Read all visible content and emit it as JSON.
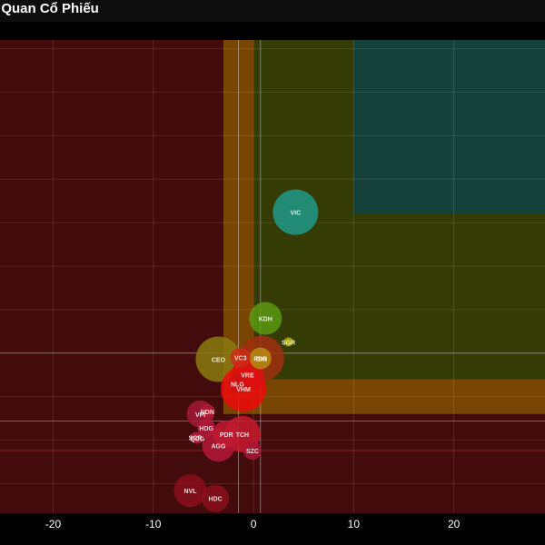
{
  "header": {
    "title": "g Quan Cổ Phiếu"
  },
  "chart_data": {
    "type": "scatter",
    "xlim": [
      -25.3,
      29.1
    ],
    "ylim": [
      -13.4,
      41.0
    ],
    "xticks": [
      -20,
      -10,
      0,
      10,
      20
    ],
    "xtick_labels": [
      "-20",
      "-10",
      "0",
      "10",
      "20"
    ],
    "grid": true,
    "zones": [
      {
        "name": "red",
        "color": "#7a1414",
        "opacity": 0.55,
        "x": [
          -25.3,
          29.1
        ],
        "y": [
          -13.4,
          41.0
        ]
      },
      {
        "name": "orange",
        "color": "#8a5a00",
        "opacity": 0.75,
        "x": [
          -3.0,
          29.1
        ],
        "y": [
          -2.0,
          41.0
        ]
      },
      {
        "name": "olive",
        "color": "#2c3a06",
        "opacity": 0.9,
        "x": [
          0.0,
          29.1
        ],
        "y": [
          2.0,
          41.0
        ]
      },
      {
        "name": "teal",
        "color": "#16413a",
        "opacity": 1.0,
        "x": [
          10.0,
          29.1
        ],
        "y": [
          21.0,
          41.0
        ]
      }
    ],
    "reference_lines": {
      "vertical": [
        -1.5,
        0.7
      ],
      "horizontal": [
        5.0,
        -2.8,
        -6.2
      ]
    },
    "points": [
      {
        "label": "VIC",
        "x": 4.2,
        "y": 21.2,
        "size": 25,
        "color": "#1f9a8a"
      },
      {
        "label": "KDH",
        "x": 1.2,
        "y": 9.0,
        "size": 18,
        "color": "#5a9a10"
      },
      {
        "label": "SGR",
        "x": 3.5,
        "y": 6.3,
        "size": 5,
        "color": "#b5b000"
      },
      {
        "label": "CEO",
        "x": -3.5,
        "y": 4.3,
        "size": 25,
        "color": "#8a7a10"
      },
      {
        "label": "VC3",
        "x": -1.3,
        "y": 4.5,
        "size": 11,
        "color": "#cc2a18"
      },
      {
        "label": "DIG",
        "x": 0.8,
        "y": 4.4,
        "size": 25,
        "color": "#a0300e"
      },
      {
        "label": "PDR",
        "x": 0.7,
        "y": 4.4,
        "size": 12,
        "color": "#b88c14"
      },
      {
        "label": "VRE",
        "x": -0.6,
        "y": 2.5,
        "size": 18,
        "color": "#dd1111"
      },
      {
        "label": "VHM",
        "x": -1.0,
        "y": 0.9,
        "size": 25,
        "color": "#ee0a0a"
      },
      {
        "label": "NLG",
        "x": -1.6,
        "y": 1.5,
        "size": 10,
        "color": "#cc1414"
      },
      {
        "label": "NDN",
        "x": -4.6,
        "y": -1.7,
        "size": 8,
        "color": "#b01a33"
      },
      {
        "label": "VPI",
        "x": -5.3,
        "y": -2.0,
        "size": 15,
        "color": "#a41836"
      },
      {
        "label": "HDG",
        "x": -4.7,
        "y": -3.6,
        "size": 10,
        "color": "#b01a3a"
      },
      {
        "label": "QCG",
        "x": -5.6,
        "y": -4.8,
        "size": 6,
        "color": "#b01a3a"
      },
      {
        "label": "SCR",
        "x": -5.8,
        "y": -4.7,
        "size": 6,
        "color": "#b01a3a"
      },
      {
        "label": "PDR",
        "x": -2.7,
        "y": -4.3,
        "size": 15,
        "color": "#c01a30"
      },
      {
        "label": "TCH",
        "x": -1.1,
        "y": -4.3,
        "size": 20,
        "color": "#c81a2a"
      },
      {
        "label": "AGG",
        "x": -3.5,
        "y": -5.6,
        "size": 18,
        "color": "#b41838"
      },
      {
        "label": "SZC",
        "x": -0.1,
        "y": -6.2,
        "size": 10,
        "color": "#aa1838"
      },
      {
        "label": "NVL",
        "x": -6.3,
        "y": -10.8,
        "size": 18,
        "color": "#8a0f1c"
      },
      {
        "label": "HDC",
        "x": -3.8,
        "y": -11.7,
        "size": 15,
        "color": "#8a0f1c"
      }
    ]
  }
}
